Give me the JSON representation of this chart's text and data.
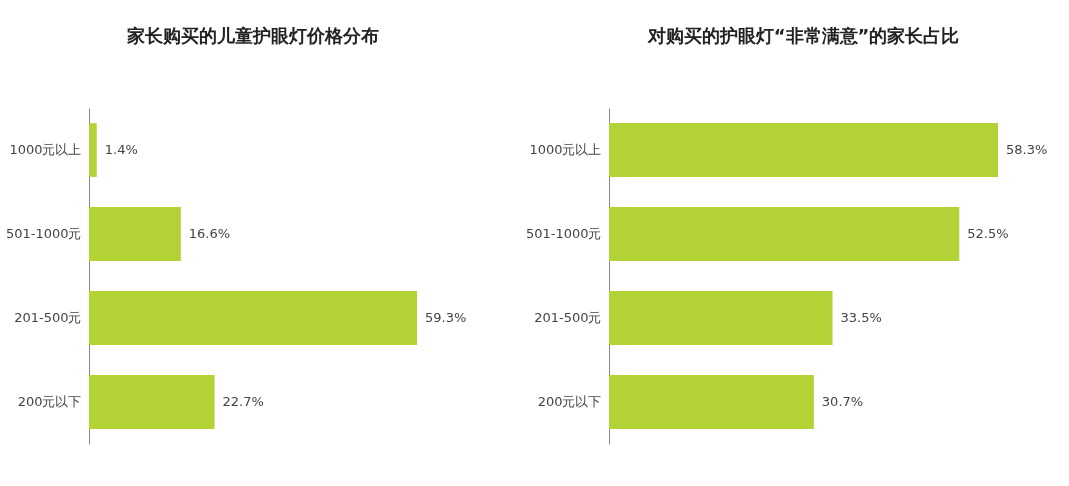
{
  "chart_data": [
    {
      "type": "bar",
      "orientation": "horizontal",
      "title": "家长购买的儿童护眼灯价格分布",
      "categories": [
        "1000元以上",
        "501-1000元",
        "201-500元",
        "200元以下"
      ],
      "values": [
        1.4,
        16.6,
        59.3,
        22.7
      ],
      "value_labels": [
        "1.4%",
        "16.6%",
        "59.3%",
        "22.7%"
      ],
      "color": "#b2d235"
    },
    {
      "type": "bar",
      "orientation": "horizontal",
      "title": "对购买的护眼灯“非常满意”的家长占比",
      "categories": [
        "1000元以上",
        "501-1000元",
        "201-500元",
        "200元以下"
      ],
      "values": [
        58.3,
        52.5,
        33.5,
        30.7
      ],
      "value_labels": [
        "58.3%",
        "52.5%",
        "33.5%",
        "30.7%"
      ],
      "color": "#b2d235"
    }
  ]
}
